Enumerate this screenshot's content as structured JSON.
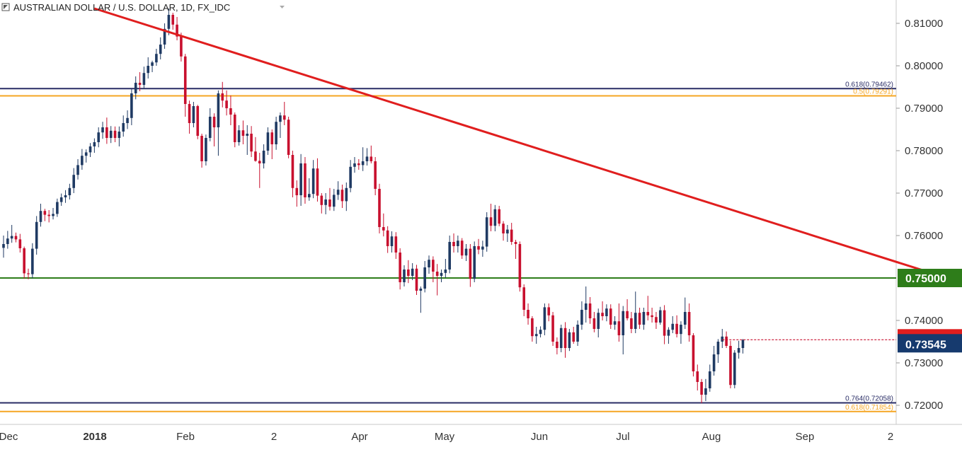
{
  "header": {
    "icon": "collapse-square-icon",
    "title": "AUSTRALIAN DOLLAR / U.S. DOLLAR, 1D, FX_IDC",
    "dropdown_icon": "caret-down-icon"
  },
  "colors": {
    "bull": "#1f3a63",
    "bear": "#c8102e",
    "trendline": "#e01e1e",
    "fib_navy": "#2a2d66",
    "fib_orange": "#f5a623",
    "support_green": "#2e7d1a",
    "price_tag": "#163a6e"
  },
  "chart_data": {
    "type": "candlestick",
    "y_axis": {
      "min": 0.7155,
      "max": 0.8155,
      "ticks": [
        "0.81000",
        "0.80000",
        "0.79000",
        "0.78000",
        "0.77000",
        "0.76000",
        "0.74000",
        "0.73000",
        "0.72000"
      ]
    },
    "x_axis": {
      "labels": [
        "Dec",
        "2018",
        "Feb",
        "2",
        "Apr",
        "May",
        "Jun",
        "Jul",
        "Aug",
        "Sep",
        "2"
      ]
    },
    "horizontal_levels": [
      {
        "label": "0.618(0.79462)",
        "value": 0.79462,
        "color": "#2a2d66"
      },
      {
        "label": "0.5(0.79291)",
        "value": 0.79291,
        "color": "#f5a623"
      },
      {
        "label": "0.764(0.72058)",
        "value": 0.72058,
        "color": "#2a2d66"
      },
      {
        "label": "0.618(0.71854)",
        "value": 0.71854,
        "color": "#f5a623"
      },
      {
        "value": 0.75,
        "color": "#2e7d1a"
      }
    ],
    "price_badges": {
      "support": "0.75000",
      "last": "0.73545"
    },
    "last_price": 0.73545,
    "trendline": {
      "start": [
        22,
        0.8135
      ],
      "end": [
        301,
        0.7277
      ]
    },
    "candles": [
      [
        0.7571,
        0.76,
        0.7548,
        0.758
      ],
      [
        0.758,
        0.7611,
        0.7569,
        0.7593
      ],
      [
        0.7593,
        0.7625,
        0.7583,
        0.7599
      ],
      [
        0.7599,
        0.7607,
        0.7584,
        0.7591
      ],
      [
        0.7591,
        0.7604,
        0.756,
        0.757
      ],
      [
        0.757,
        0.7574,
        0.7498,
        0.7511
      ],
      [
        0.7511,
        0.7522,
        0.7497,
        0.7509
      ],
      [
        0.7509,
        0.7582,
        0.7499,
        0.7569
      ],
      [
        0.7569,
        0.7646,
        0.7555,
        0.7632
      ],
      [
        0.7632,
        0.7675,
        0.7621,
        0.7658
      ],
      [
        0.7658,
        0.7663,
        0.7634,
        0.7649
      ],
      [
        0.7649,
        0.766,
        0.7631,
        0.7646
      ],
      [
        0.7646,
        0.7665,
        0.7638,
        0.7651
      ],
      [
        0.7651,
        0.7687,
        0.7644,
        0.7679
      ],
      [
        0.7679,
        0.7699,
        0.767,
        0.769
      ],
      [
        0.769,
        0.7707,
        0.7677,
        0.7695
      ],
      [
        0.7695,
        0.7722,
        0.7685,
        0.7712
      ],
      [
        0.7712,
        0.7759,
        0.77,
        0.7743
      ],
      [
        0.7743,
        0.778,
        0.7732,
        0.7766
      ],
      [
        0.7766,
        0.7804,
        0.7755,
        0.7788
      ],
      [
        0.7788,
        0.7803,
        0.7772,
        0.7796
      ],
      [
        0.7796,
        0.7818,
        0.7785,
        0.781
      ],
      [
        0.781,
        0.7829,
        0.7795,
        0.782
      ],
      [
        0.782,
        0.7855,
        0.7808,
        0.7843
      ],
      [
        0.7843,
        0.7868,
        0.7828,
        0.7855
      ],
      [
        0.7855,
        0.7878,
        0.7816,
        0.783
      ],
      [
        0.783,
        0.7858,
        0.7818,
        0.7847
      ],
      [
        0.7847,
        0.7857,
        0.782,
        0.783
      ],
      [
        0.783,
        0.7857,
        0.781,
        0.7845
      ],
      [
        0.7845,
        0.7883,
        0.7833,
        0.7865
      ],
      [
        0.7865,
        0.7895,
        0.7851,
        0.7877
      ],
      [
        0.7877,
        0.7945,
        0.786,
        0.7935
      ],
      [
        0.7935,
        0.7975,
        0.7921,
        0.796
      ],
      [
        0.796,
        0.7985,
        0.794,
        0.7955
      ],
      [
        0.7955,
        0.7998,
        0.7945,
        0.7983
      ],
      [
        0.7983,
        0.802,
        0.797,
        0.8
      ],
      [
        0.8,
        0.8012,
        0.7985,
        0.8008
      ],
      [
        0.8008,
        0.804,
        0.8,
        0.8028
      ],
      [
        0.8028,
        0.8067,
        0.8015,
        0.805
      ],
      [
        0.805,
        0.81,
        0.804,
        0.8087
      ],
      [
        0.8087,
        0.8135,
        0.8072,
        0.812
      ],
      [
        0.812,
        0.8125,
        0.8085,
        0.8097
      ],
      [
        0.8097,
        0.8115,
        0.806,
        0.8069
      ],
      [
        0.8069,
        0.8078,
        0.801,
        0.8022
      ],
      [
        0.8022,
        0.8028,
        0.788,
        0.791
      ],
      [
        0.791,
        0.7918,
        0.784,
        0.7865
      ],
      [
        0.7865,
        0.7915,
        0.7855,
        0.7905
      ],
      [
        0.7905,
        0.7908,
        0.7827,
        0.7835
      ],
      [
        0.7835,
        0.784,
        0.776,
        0.7775
      ],
      [
        0.7775,
        0.7838,
        0.7765,
        0.783
      ],
      [
        0.783,
        0.79,
        0.7822,
        0.788
      ],
      [
        0.788,
        0.7888,
        0.781,
        0.7855
      ],
      [
        0.7855,
        0.7942,
        0.7788,
        0.7935
      ],
      [
        0.7935,
        0.7962,
        0.7902,
        0.7918
      ],
      [
        0.7918,
        0.7942,
        0.7883,
        0.79
      ],
      [
        0.79,
        0.793,
        0.786,
        0.7885
      ],
      [
        0.7885,
        0.789,
        0.7808,
        0.782
      ],
      [
        0.782,
        0.786,
        0.7812,
        0.7848
      ],
      [
        0.7848,
        0.7871,
        0.7815,
        0.7835
      ],
      [
        0.7835,
        0.786,
        0.779,
        0.784
      ],
      [
        0.784,
        0.7858,
        0.7785,
        0.7798
      ],
      [
        0.7798,
        0.7832,
        0.7774,
        0.7776
      ],
      [
        0.7776,
        0.7795,
        0.7712,
        0.777
      ],
      [
        0.777,
        0.7815,
        0.7758,
        0.78
      ],
      [
        0.78,
        0.7855,
        0.779,
        0.7843
      ],
      [
        0.7843,
        0.785,
        0.778,
        0.7815
      ],
      [
        0.7815,
        0.788,
        0.7802,
        0.7868
      ],
      [
        0.7868,
        0.789,
        0.783,
        0.7883
      ],
      [
        0.7883,
        0.7915,
        0.786,
        0.7873
      ],
      [
        0.7873,
        0.788,
        0.7782,
        0.779
      ],
      [
        0.779,
        0.78,
        0.769,
        0.7712
      ],
      [
        0.7712,
        0.773,
        0.7668,
        0.7695
      ],
      [
        0.7695,
        0.7792,
        0.767,
        0.777
      ],
      [
        0.777,
        0.7785,
        0.7675,
        0.769
      ],
      [
        0.769,
        0.7735,
        0.7682,
        0.7698
      ],
      [
        0.7698,
        0.7778,
        0.7688,
        0.7758
      ],
      [
        0.7758,
        0.7782,
        0.768,
        0.7694
      ],
      [
        0.7694,
        0.77,
        0.7652,
        0.7672
      ],
      [
        0.7672,
        0.77,
        0.765,
        0.7685
      ],
      [
        0.7685,
        0.7712,
        0.7659,
        0.7668
      ],
      [
        0.7668,
        0.771,
        0.7658,
        0.7696
      ],
      [
        0.7696,
        0.7728,
        0.7684,
        0.7708
      ],
      [
        0.7708,
        0.772,
        0.7665,
        0.7681
      ],
      [
        0.7681,
        0.7725,
        0.7658,
        0.7712
      ],
      [
        0.7712,
        0.7778,
        0.7702,
        0.7762
      ],
      [
        0.7762,
        0.7785,
        0.7748,
        0.777
      ],
      [
        0.777,
        0.778,
        0.7755,
        0.7766
      ],
      [
        0.7766,
        0.7808,
        0.7752,
        0.7775
      ],
      [
        0.7775,
        0.7806,
        0.7765,
        0.7786
      ],
      [
        0.7786,
        0.7812,
        0.777,
        0.7775
      ],
      [
        0.7775,
        0.7785,
        0.7695,
        0.771
      ],
      [
        0.771,
        0.7722,
        0.7605,
        0.762
      ],
      [
        0.762,
        0.7652,
        0.7598,
        0.7612
      ],
      [
        0.7612,
        0.7622,
        0.7559,
        0.7575
      ],
      [
        0.7575,
        0.761,
        0.756,
        0.7598
      ],
      [
        0.7598,
        0.7608,
        0.7545,
        0.756
      ],
      [
        0.756,
        0.757,
        0.7473,
        0.749
      ],
      [
        0.749,
        0.753,
        0.748,
        0.752
      ],
      [
        0.752,
        0.7542,
        0.7488,
        0.7505
      ],
      [
        0.7505,
        0.7535,
        0.7495,
        0.7522
      ],
      [
        0.7522,
        0.7531,
        0.746,
        0.747
      ],
      [
        0.747,
        0.748,
        0.7418,
        0.7475
      ],
      [
        0.7475,
        0.754,
        0.7466,
        0.7525
      ],
      [
        0.7525,
        0.7553,
        0.751,
        0.7543
      ],
      [
        0.7543,
        0.7551,
        0.749,
        0.7515
      ],
      [
        0.7515,
        0.7533,
        0.7459,
        0.7505
      ],
      [
        0.7505,
        0.752,
        0.749,
        0.7512
      ],
      [
        0.7512,
        0.7545,
        0.75,
        0.752
      ],
      [
        0.752,
        0.76,
        0.7511,
        0.7585
      ],
      [
        0.7585,
        0.7605,
        0.756,
        0.7575
      ],
      [
        0.7575,
        0.76,
        0.756,
        0.7588
      ],
      [
        0.7588,
        0.7594,
        0.7545,
        0.7553
      ],
      [
        0.7553,
        0.758,
        0.754,
        0.7569
      ],
      [
        0.7569,
        0.758,
        0.7479,
        0.7498
      ],
      [
        0.7498,
        0.7586,
        0.749,
        0.7575
      ],
      [
        0.7575,
        0.7592,
        0.7556,
        0.7567
      ],
      [
        0.7567,
        0.7588,
        0.755,
        0.7574
      ],
      [
        0.7574,
        0.7655,
        0.7562,
        0.7643
      ],
      [
        0.7643,
        0.7675,
        0.761,
        0.7623
      ],
      [
        0.7623,
        0.7672,
        0.761,
        0.7662
      ],
      [
        0.7662,
        0.767,
        0.7622,
        0.7628
      ],
      [
        0.7628,
        0.7634,
        0.7588,
        0.7605
      ],
      [
        0.7605,
        0.7625,
        0.7585,
        0.7614
      ],
      [
        0.7614,
        0.763,
        0.7578,
        0.7585
      ],
      [
        0.7585,
        0.759,
        0.7545,
        0.758
      ],
      [
        0.758,
        0.7586,
        0.7468,
        0.7478
      ],
      [
        0.7478,
        0.7485,
        0.741,
        0.7425
      ],
      [
        0.7425,
        0.744,
        0.739,
        0.7405
      ],
      [
        0.7405,
        0.741,
        0.735,
        0.7363
      ],
      [
        0.7363,
        0.7385,
        0.7345,
        0.7368
      ],
      [
        0.7368,
        0.7386,
        0.736,
        0.7378
      ],
      [
        0.7378,
        0.744,
        0.7365,
        0.7431
      ],
      [
        0.7431,
        0.744,
        0.7398,
        0.7412
      ],
      [
        0.7412,
        0.742,
        0.734,
        0.735
      ],
      [
        0.735,
        0.736,
        0.732,
        0.7335
      ],
      [
        0.7335,
        0.739,
        0.7325,
        0.7382
      ],
      [
        0.7382,
        0.7396,
        0.7312,
        0.7335
      ],
      [
        0.7335,
        0.738,
        0.7328,
        0.7372
      ],
      [
        0.7372,
        0.7385,
        0.7345,
        0.735
      ],
      [
        0.735,
        0.74,
        0.734,
        0.739
      ],
      [
        0.739,
        0.7445,
        0.7378,
        0.7425
      ],
      [
        0.7425,
        0.748,
        0.7395,
        0.744
      ],
      [
        0.744,
        0.7455,
        0.7392,
        0.7405
      ],
      [
        0.7405,
        0.742,
        0.7372,
        0.738
      ],
      [
        0.738,
        0.7428,
        0.736,
        0.7418
      ],
      [
        0.7418,
        0.7445,
        0.74,
        0.741
      ],
      [
        0.741,
        0.7438,
        0.7398,
        0.7428
      ],
      [
        0.7428,
        0.7438,
        0.738,
        0.739
      ],
      [
        0.739,
        0.741,
        0.7378,
        0.7398
      ],
      [
        0.7398,
        0.744,
        0.735,
        0.7365
      ],
      [
        0.7365,
        0.7434,
        0.732,
        0.7422
      ],
      [
        0.7422,
        0.745,
        0.74,
        0.7405
      ],
      [
        0.7405,
        0.742,
        0.737,
        0.738
      ],
      [
        0.738,
        0.7468,
        0.737,
        0.7418
      ],
      [
        0.7418,
        0.743,
        0.738,
        0.739
      ],
      [
        0.739,
        0.743,
        0.7378,
        0.742
      ],
      [
        0.742,
        0.7458,
        0.74,
        0.7412
      ],
      [
        0.7412,
        0.743,
        0.7395,
        0.7408
      ],
      [
        0.7408,
        0.742,
        0.738,
        0.7395
      ],
      [
        0.7395,
        0.7432,
        0.739,
        0.7424
      ],
      [
        0.7424,
        0.7436,
        0.7344,
        0.7364
      ],
      [
        0.7364,
        0.7384,
        0.7345,
        0.7378
      ],
      [
        0.7378,
        0.741,
        0.737,
        0.7392
      ],
      [
        0.7392,
        0.7412,
        0.736,
        0.7368
      ],
      [
        0.7368,
        0.7398,
        0.7345,
        0.739
      ],
      [
        0.739,
        0.7454,
        0.738,
        0.742
      ],
      [
        0.742,
        0.744,
        0.735,
        0.7365
      ],
      [
        0.7365,
        0.737,
        0.7268,
        0.728
      ],
      [
        0.728,
        0.7296,
        0.7235,
        0.7255
      ],
      [
        0.7255,
        0.7262,
        0.7205,
        0.7225
      ],
      [
        0.7225,
        0.7262,
        0.721,
        0.724
      ],
      [
        0.724,
        0.7296,
        0.7232,
        0.728
      ],
      [
        0.728,
        0.734,
        0.727,
        0.732
      ],
      [
        0.732,
        0.7356,
        0.73,
        0.735
      ],
      [
        0.735,
        0.738,
        0.7335,
        0.7362
      ],
      [
        0.7362,
        0.7374,
        0.7335,
        0.734
      ],
      [
        0.734,
        0.7352,
        0.724,
        0.7248
      ],
      [
        0.7248,
        0.733,
        0.724,
        0.7324
      ],
      [
        0.7324,
        0.7352,
        0.731,
        0.7335
      ],
      [
        0.7335,
        0.7356,
        0.7322,
        0.7354
      ]
    ]
  }
}
